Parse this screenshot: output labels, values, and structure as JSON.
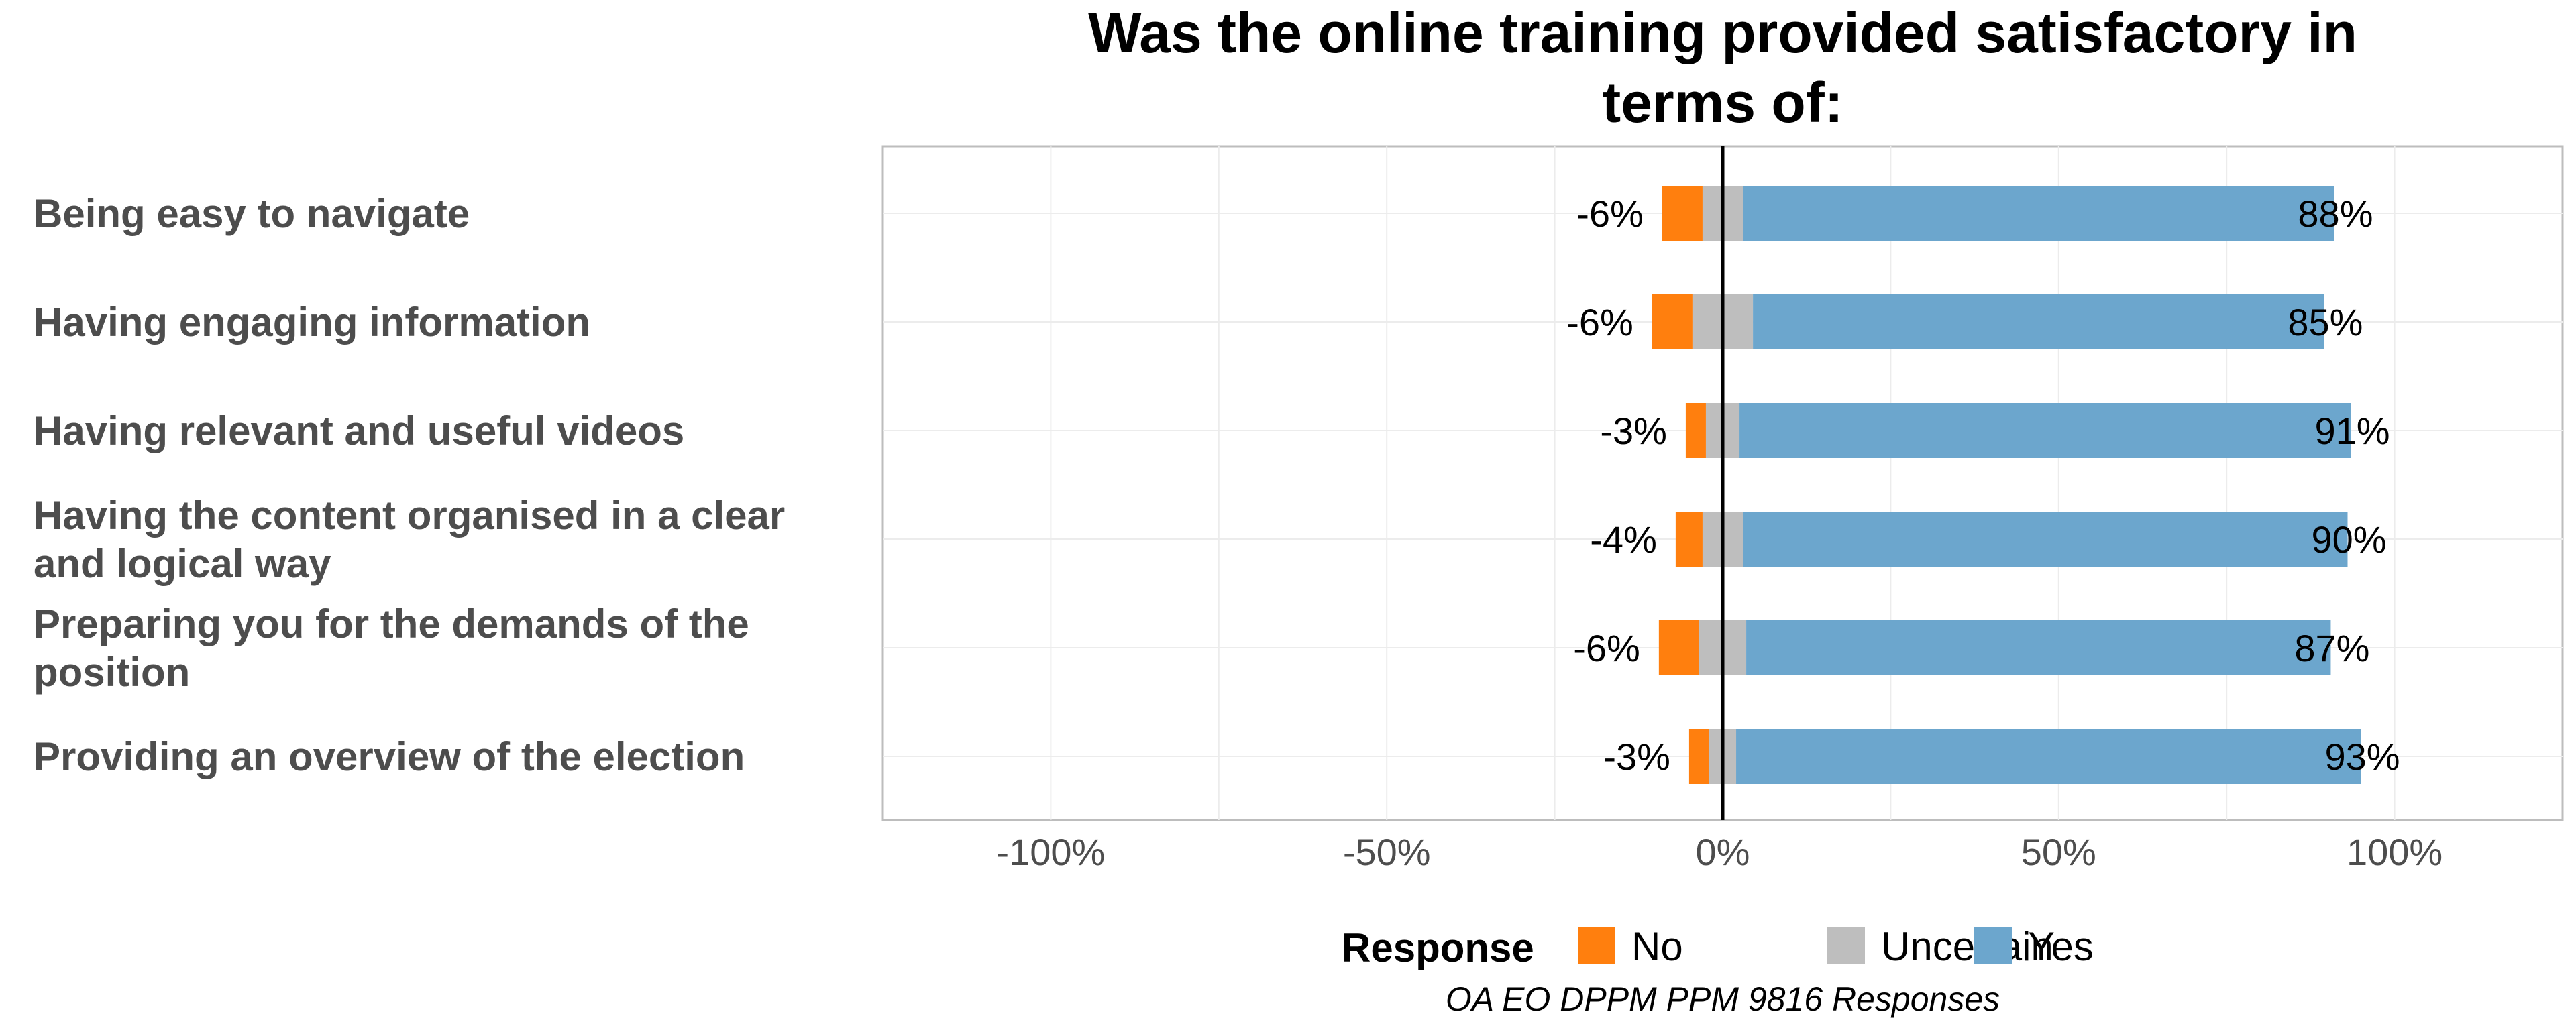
{
  "chart_data": {
    "type": "bar",
    "orientation": "horizontal",
    "stacked": "diverging",
    "title_lines": [
      "Was the online training provided satisfactory in",
      "terms of:"
    ],
    "categories": [
      [
        "Being easy to navigate"
      ],
      [
        "Having engaging information"
      ],
      [
        "Having relevant and useful videos"
      ],
      [
        "Having the content organised in a clear",
        "and logical way"
      ],
      [
        "Preparing you for the demands of the",
        "position"
      ],
      [
        "Providing an overview of the election"
      ]
    ],
    "series": [
      {
        "name": "No",
        "color": "#ff7f0e",
        "values": [
          -6,
          -6,
          -3,
          -4,
          -6,
          -3
        ]
      },
      {
        "name": "Uncertain",
        "color": "#bebebe",
        "values": [
          6,
          9,
          5,
          6,
          7,
          4
        ]
      },
      {
        "name": "Yes",
        "color": "#6ca6cd",
        "values": [
          88,
          85,
          91,
          90,
          87,
          93
        ]
      }
    ],
    "data_labels_no": [
      "-6%",
      "-6%",
      "-3%",
      "-4%",
      "-6%",
      "-3%"
    ],
    "data_labels_yes": [
      "88%",
      "85%",
      "91%",
      "90%",
      "87%",
      "93%"
    ],
    "xlim": [
      -125,
      125
    ],
    "xticks": [
      -100,
      -50,
      0,
      50,
      100
    ],
    "xtick_labels": [
      "-100%",
      "-50%",
      "0%",
      "50%",
      "100%"
    ],
    "grid": true,
    "legend": {
      "title": "Response",
      "position": "bottom",
      "entries": [
        "No",
        "Uncertain",
        "Yes"
      ]
    },
    "caption": "OA EO DPPM PPM 9816 Responses"
  }
}
